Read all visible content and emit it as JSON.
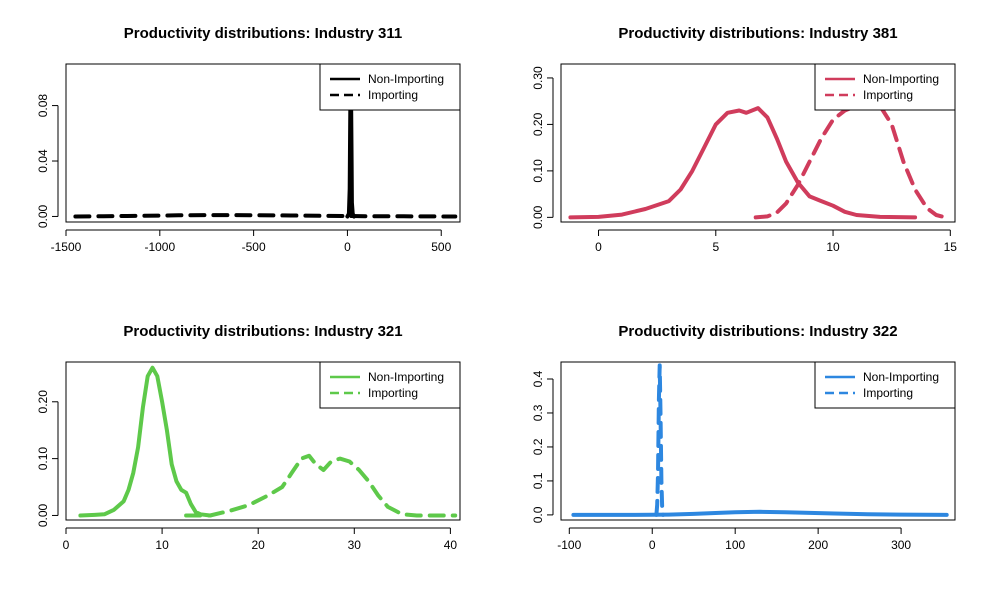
{
  "chart_data": [
    {
      "type": "line",
      "title": "Productivity distributions: Industry 311",
      "xlabel": "",
      "ylabel": "",
      "xlim": [
        -1500,
        600
      ],
      "ylim": [
        -0.004,
        0.11
      ],
      "xticks": [
        -1500,
        -1000,
        -500,
        0,
        500
      ],
      "xtick_labels": [
        "-1500",
        "-1000",
        "-500",
        "0",
        "500"
      ],
      "yticks": [
        0.0,
        0.04,
        0.08
      ],
      "ytick_labels": [
        "0.00",
        "0.04",
        "0.08"
      ],
      "grid": false,
      "legend_position": "top-right",
      "color": "#000000",
      "series": [
        {
          "name": "Non-Importing",
          "dash": "solid",
          "x": [
            0,
            8,
            12,
            14,
            16,
            18,
            20,
            22,
            24,
            28,
            35
          ],
          "y": [
            0.0,
            0.002,
            0.02,
            0.06,
            0.085,
            0.09,
            0.075,
            0.04,
            0.01,
            0.002,
            0.0
          ]
        },
        {
          "name": "Importing",
          "dash": "dashed",
          "x": [
            -1450,
            -1300,
            -1100,
            -900,
            -700,
            -500,
            -300,
            -100,
            0,
            100,
            300,
            575
          ],
          "y": [
            0.0,
            0.0002,
            0.0005,
            0.0008,
            0.001,
            0.0009,
            0.0007,
            0.0004,
            0.0003,
            0.0002,
            0.0001,
            0.0
          ]
        }
      ]
    },
    {
      "type": "line",
      "title": "Productivity distributions: Industry 381",
      "xlabel": "",
      "ylabel": "",
      "xlim": [
        -1.6,
        15.2
      ],
      "ylim": [
        -0.01,
        0.33
      ],
      "xticks": [
        0,
        5,
        10,
        15
      ],
      "xtick_labels": [
        "0",
        "5",
        "10",
        "15"
      ],
      "yticks": [
        0.0,
        0.1,
        0.2,
        0.3
      ],
      "ytick_labels": [
        "0.00",
        "0.10",
        "0.20",
        "0.30"
      ],
      "grid": false,
      "legend_position": "top-right",
      "color": "#d03c5c",
      "series": [
        {
          "name": "Non-Importing",
          "dash": "solid",
          "x": [
            -1.2,
            0,
            1,
            2,
            3,
            3.5,
            4,
            4.5,
            5,
            5.5,
            6,
            6.3,
            6.8,
            7.2,
            7.6,
            8,
            8.5,
            9,
            9.5,
            10,
            10.5,
            11,
            12,
            13.5
          ],
          "y": [
            0.0,
            0.001,
            0.006,
            0.018,
            0.035,
            0.06,
            0.1,
            0.15,
            0.2,
            0.225,
            0.23,
            0.225,
            0.235,
            0.215,
            0.17,
            0.12,
            0.075,
            0.045,
            0.035,
            0.025,
            0.012,
            0.005,
            0.001,
            0.0
          ]
        },
        {
          "name": "Importing",
          "dash": "dashed",
          "x": [
            6.7,
            7.2,
            7.6,
            8,
            8.5,
            9,
            9.5,
            10,
            10.5,
            11,
            11.5,
            12,
            12.5,
            13,
            13.5,
            14,
            14.4,
            14.8
          ],
          "y": [
            0.0,
            0.002,
            0.01,
            0.03,
            0.07,
            0.12,
            0.17,
            0.21,
            0.23,
            0.24,
            0.245,
            0.24,
            0.2,
            0.12,
            0.06,
            0.02,
            0.005,
            0.0
          ]
        }
      ]
    },
    {
      "type": "line",
      "title": "Productivity distributions: Industry 321",
      "xlabel": "",
      "ylabel": "",
      "xlim": [
        0,
        41
      ],
      "ylim": [
        -0.008,
        0.27
      ],
      "xticks": [
        0,
        10,
        20,
        30,
        40
      ],
      "xtick_labels": [
        "0",
        "10",
        "20",
        "30",
        "40"
      ],
      "yticks": [
        0.0,
        0.1,
        0.2
      ],
      "ytick_labels": [
        "0.00",
        "0.10",
        "0.20"
      ],
      "grid": false,
      "legend_position": "top-right",
      "color": "#5ec94a",
      "series": [
        {
          "name": "Non-Importing",
          "dash": "solid",
          "x": [
            1.5,
            3,
            4,
            5,
            6,
            6.5,
            7,
            7.5,
            8,
            8.5,
            9,
            9.5,
            10,
            10.5,
            11,
            11.5,
            12,
            12.5,
            13,
            13.5,
            14,
            15
          ],
          "y": [
            0.0,
            0.001,
            0.002,
            0.01,
            0.025,
            0.045,
            0.075,
            0.12,
            0.19,
            0.245,
            0.26,
            0.245,
            0.2,
            0.15,
            0.09,
            0.06,
            0.045,
            0.04,
            0.02,
            0.006,
            0.002,
            0.0
          ]
        },
        {
          "name": "Importing",
          "dash": "dashed",
          "x": [
            12.5,
            15,
            17,
            19,
            21,
            22.5,
            23.5,
            24.5,
            25.3,
            26,
            26.8,
            27.6,
            28.5,
            29.5,
            30.5,
            31.5,
            32.5,
            33.5,
            35,
            36.5,
            38,
            40.5
          ],
          "y": [
            0.0,
            0.0,
            0.008,
            0.018,
            0.035,
            0.05,
            0.075,
            0.1,
            0.105,
            0.09,
            0.08,
            0.095,
            0.1,
            0.095,
            0.08,
            0.06,
            0.035,
            0.015,
            0.002,
            0.0,
            0.0,
            0.0
          ]
        }
      ]
    },
    {
      "type": "line",
      "title": "Productivity distributions: Industry 322",
      "xlabel": "",
      "ylabel": "",
      "xlim": [
        -110,
        365
      ],
      "ylim": [
        -0.015,
        0.45
      ],
      "xticks": [
        -100,
        0,
        100,
        200,
        300
      ],
      "xtick_labels": [
        "-100",
        "0",
        "100",
        "200",
        "300"
      ],
      "yticks": [
        0.0,
        0.1,
        0.2,
        0.3,
        0.4
      ],
      "ytick_labels": [
        "0.0",
        "0.1",
        "0.2",
        "0.3",
        "0.4"
      ],
      "grid": false,
      "legend_position": "top-right",
      "color": "#2d87e0",
      "series": [
        {
          "name": "Non-Importing",
          "dash": "solid",
          "x": [
            -95,
            -50,
            0,
            20,
            50,
            80,
            100,
            130,
            160,
            190,
            220,
            260,
            300,
            355
          ],
          "y": [
            0.0,
            0.0,
            0.0003,
            0.001,
            0.003,
            0.006,
            0.008,
            0.009,
            0.008,
            0.006,
            0.004,
            0.002,
            0.001,
            0.0
          ]
        },
        {
          "name": "Importing",
          "dash": "dashed",
          "x": [
            5,
            6,
            7,
            8,
            9,
            10,
            11,
            12,
            13
          ],
          "y": [
            0.0,
            0.03,
            0.12,
            0.34,
            0.44,
            0.3,
            0.1,
            0.02,
            0.0
          ]
        }
      ]
    }
  ]
}
